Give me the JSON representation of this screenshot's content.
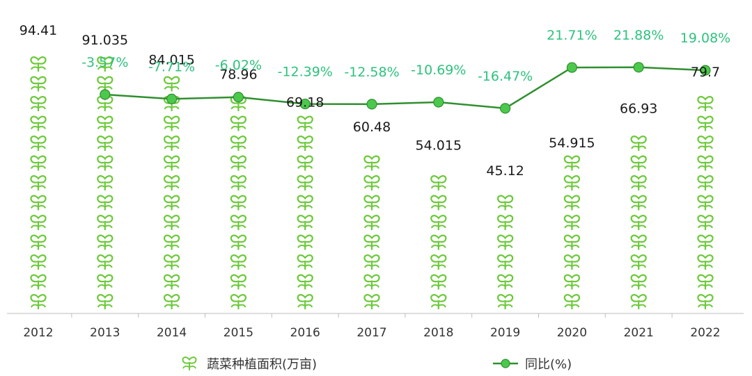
{
  "chart_data": {
    "type": "bar+line",
    "categories": [
      "2012",
      "2013",
      "2014",
      "2015",
      "2016",
      "2017",
      "2018",
      "2019",
      "2020",
      "2021",
      "2022"
    ],
    "series": [
      {
        "name": "蔬菜种植面积(万亩)",
        "type": "bar",
        "values": [
          94.41,
          91.035,
          84.015,
          78.96,
          69.18,
          60.48,
          54.015,
          45.12,
          54.915,
          66.93,
          79.7
        ],
        "labels": [
          "94.41",
          "91.035",
          "84.015",
          "78.96",
          "69.18",
          "60.48",
          "54.015",
          "45.12",
          "54.915",
          "66.93",
          "79.7"
        ]
      },
      {
        "name": "同比(%)",
        "type": "line",
        "values": [
          null,
          -3.57,
          -7.71,
          -6.02,
          -12.39,
          -12.58,
          -10.69,
          -16.47,
          21.71,
          21.88,
          19.08
        ],
        "labels": [
          "",
          "-3.57%",
          "-7.71%",
          "-6.02%",
          "-12.39%",
          "-12.58%",
          "-10.69%",
          "-16.47%",
          "21.71%",
          "21.88%",
          "19.08%"
        ]
      }
    ],
    "colors": {
      "bar": "#7ccf3c",
      "line": "#2f8f2f",
      "line_marker": "#4cc94c",
      "pct_text": "#2ec27e"
    },
    "legend_position": "bottom",
    "grid": false
  }
}
